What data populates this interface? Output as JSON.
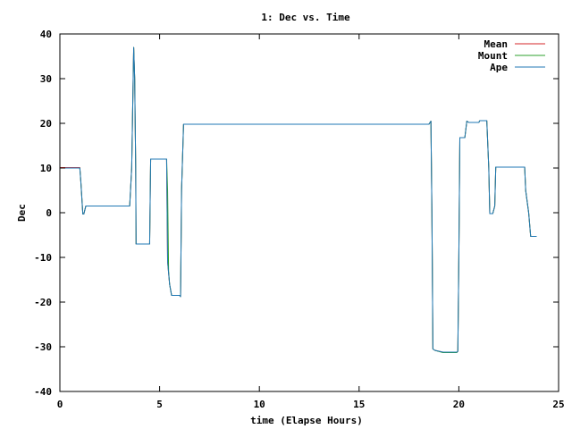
{
  "chart_data": {
    "type": "line",
    "title": "1: Dec vs. Time",
    "xlabel": "time (Elapse Hours)",
    "ylabel": "Dec",
    "xlim": [
      0,
      25
    ],
    "ylim": [
      -40,
      40
    ],
    "xticks": [
      0,
      5,
      10,
      15,
      20,
      25
    ],
    "yticks": [
      -40,
      -30,
      -20,
      -10,
      0,
      10,
      20,
      30,
      40
    ],
    "grid": false,
    "legend_position": "top-right",
    "series": [
      {
        "name": "Mean",
        "color": "#d62728",
        "points": [
          [
            0,
            10.1
          ],
          [
            1.0,
            10.1
          ],
          [
            1.05,
            7
          ],
          [
            1.15,
            -0.3
          ],
          [
            1.2,
            -0.3
          ],
          [
            1.3,
            1.5
          ],
          [
            3.4,
            1.5
          ],
          [
            3.5,
            1.5
          ],
          [
            3.6,
            10
          ],
          [
            3.7,
            37
          ],
          [
            3.75,
            30
          ],
          [
            3.8,
            10
          ],
          [
            3.82,
            -7
          ],
          [
            4.5,
            -7
          ],
          [
            4.55,
            12
          ],
          [
            5.35,
            12
          ],
          [
            5.4,
            -11
          ],
          [
            5.5,
            -16
          ],
          [
            5.6,
            -18.5
          ],
          [
            6.0,
            -18.5
          ],
          [
            6.05,
            -18.8
          ],
          [
            6.1,
            5
          ],
          [
            6.2,
            19.8
          ],
          [
            18.5,
            19.8
          ],
          [
            18.6,
            20.5
          ],
          [
            18.65,
            0
          ],
          [
            18.7,
            -30.5
          ],
          [
            18.8,
            -30.8
          ],
          [
            19.2,
            -31.2
          ],
          [
            19.9,
            -31.2
          ],
          [
            19.95,
            -31
          ],
          [
            20.0,
            -10
          ],
          [
            20.05,
            16.8
          ],
          [
            20.3,
            16.8
          ],
          [
            20.4,
            20.5
          ],
          [
            20.5,
            20.2
          ],
          [
            21.0,
            20.2
          ],
          [
            21.05,
            20.6
          ],
          [
            21.4,
            20.6
          ],
          [
            21.5,
            10
          ],
          [
            21.55,
            -0.2
          ],
          [
            21.7,
            -0.2
          ],
          [
            21.8,
            1.5
          ],
          [
            21.85,
            10.2
          ],
          [
            23.3,
            10.2
          ],
          [
            23.35,
            5
          ],
          [
            23.5,
            0
          ],
          [
            23.6,
            -5.3
          ],
          [
            23.9,
            -5.3
          ]
        ]
      },
      {
        "name": "Mount",
        "color": "#2ca02c",
        "points": [
          [
            0,
            10.0
          ],
          [
            1.0,
            10.0
          ],
          [
            1.05,
            7
          ],
          [
            1.15,
            -0.3
          ],
          [
            1.2,
            -0.3
          ],
          [
            1.3,
            1.5
          ],
          [
            3.4,
            1.5
          ],
          [
            3.5,
            1.5
          ],
          [
            3.6,
            10
          ],
          [
            3.7,
            37
          ],
          [
            3.75,
            30
          ],
          [
            3.8,
            10
          ],
          [
            3.82,
            -7
          ],
          [
            4.5,
            -7
          ],
          [
            4.55,
            12
          ],
          [
            5.35,
            12
          ],
          [
            5.4,
            5
          ],
          [
            5.45,
            -13
          ],
          [
            5.5,
            -16
          ],
          [
            5.6,
            -18.5
          ],
          [
            6.0,
            -18.5
          ],
          [
            6.05,
            -18.8
          ],
          [
            6.1,
            5
          ],
          [
            6.2,
            19.8
          ],
          [
            18.5,
            19.8
          ],
          [
            18.6,
            20.5
          ],
          [
            18.65,
            0
          ],
          [
            18.7,
            -30.5
          ],
          [
            18.8,
            -30.8
          ],
          [
            19.2,
            -31.3
          ],
          [
            19.9,
            -31.3
          ],
          [
            19.95,
            -31
          ],
          [
            20.0,
            -10
          ],
          [
            20.05,
            16.8
          ],
          [
            20.3,
            16.8
          ],
          [
            20.4,
            20.5
          ],
          [
            20.5,
            20.2
          ],
          [
            21.0,
            20.2
          ],
          [
            21.05,
            20.6
          ],
          [
            21.4,
            20.6
          ],
          [
            21.5,
            10
          ],
          [
            21.55,
            -0.2
          ],
          [
            21.7,
            -0.2
          ],
          [
            21.8,
            1.5
          ],
          [
            21.85,
            10.2
          ],
          [
            23.3,
            10.2
          ],
          [
            23.35,
            5
          ],
          [
            23.5,
            0
          ],
          [
            23.6,
            -5.3
          ],
          [
            23.9,
            -5.3
          ]
        ]
      },
      {
        "name": "Ape",
        "color": "#1f77b4",
        "points": [
          [
            0,
            10.0
          ],
          [
            1.0,
            10.0
          ],
          [
            1.05,
            7
          ],
          [
            1.15,
            -0.3
          ],
          [
            1.2,
            -0.3
          ],
          [
            1.3,
            1.5
          ],
          [
            3.4,
            1.5
          ],
          [
            3.5,
            1.5
          ],
          [
            3.6,
            10
          ],
          [
            3.7,
            37
          ],
          [
            3.75,
            30
          ],
          [
            3.8,
            10
          ],
          [
            3.82,
            -7
          ],
          [
            4.5,
            -7
          ],
          [
            4.55,
            12
          ],
          [
            5.35,
            12
          ],
          [
            5.4,
            -11
          ],
          [
            5.5,
            -16
          ],
          [
            5.6,
            -18.5
          ],
          [
            6.0,
            -18.5
          ],
          [
            6.05,
            -18.8
          ],
          [
            6.1,
            5
          ],
          [
            6.2,
            19.8
          ],
          [
            18.5,
            19.8
          ],
          [
            18.6,
            20.5
          ],
          [
            18.65,
            0
          ],
          [
            18.7,
            -30.5
          ],
          [
            18.8,
            -30.8
          ],
          [
            19.2,
            -31.2
          ],
          [
            19.9,
            -31.2
          ],
          [
            19.95,
            -31
          ],
          [
            20.0,
            -10
          ],
          [
            20.05,
            16.8
          ],
          [
            20.3,
            16.8
          ],
          [
            20.4,
            20.5
          ],
          [
            20.5,
            20.2
          ],
          [
            21.0,
            20.2
          ],
          [
            21.05,
            20.6
          ],
          [
            21.4,
            20.6
          ],
          [
            21.5,
            10
          ],
          [
            21.55,
            -0.2
          ],
          [
            21.7,
            -0.2
          ],
          [
            21.8,
            1.5
          ],
          [
            21.85,
            10.2
          ],
          [
            23.3,
            10.2
          ],
          [
            23.35,
            5
          ],
          [
            23.5,
            0
          ],
          [
            23.6,
            -5.3
          ],
          [
            23.9,
            -5.3
          ]
        ]
      }
    ]
  }
}
